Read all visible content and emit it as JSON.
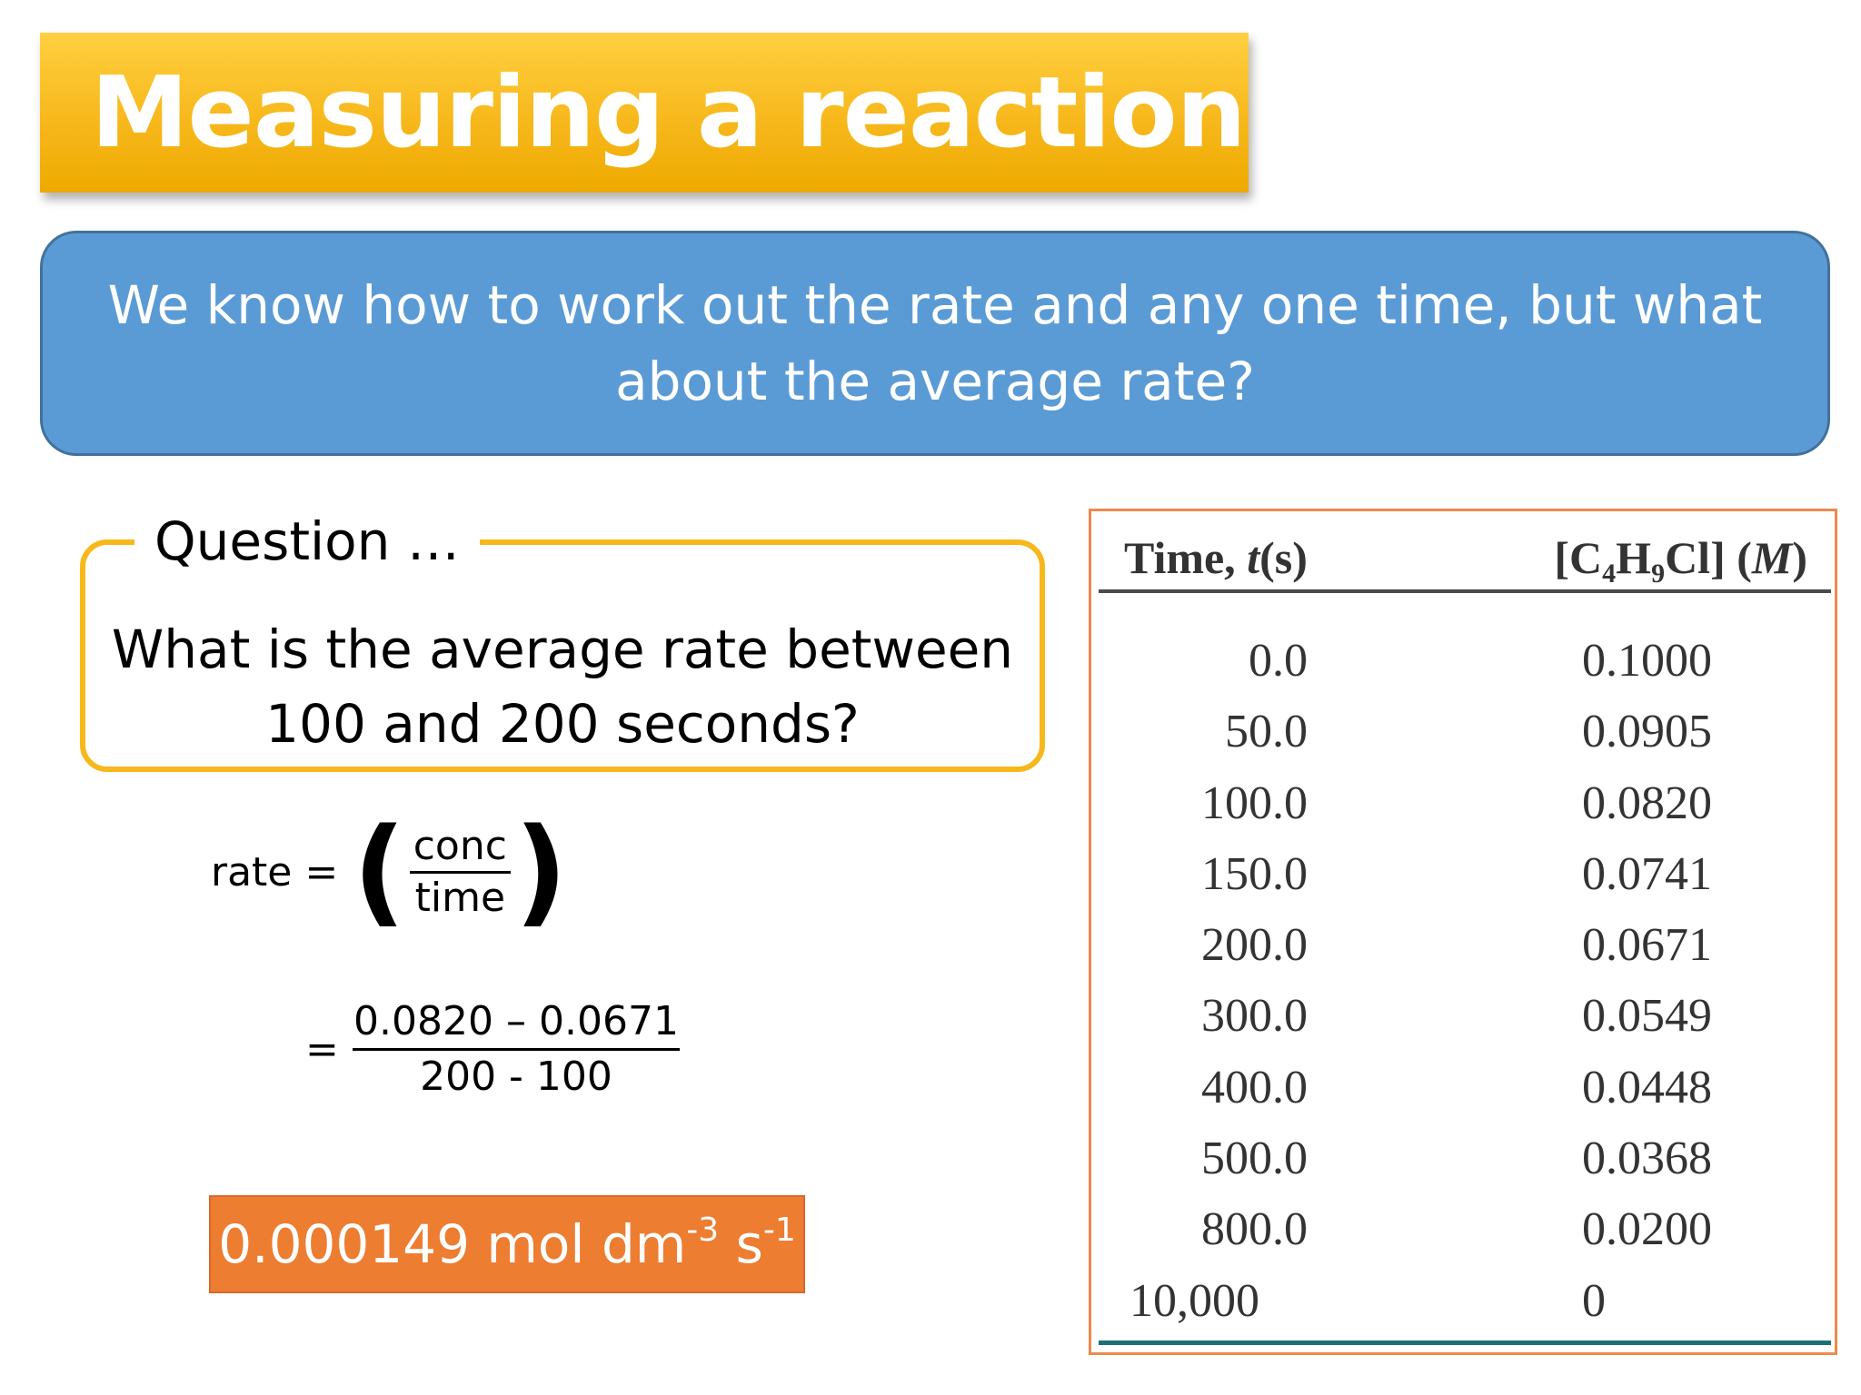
{
  "title": "Measuring a reaction rate",
  "intro": "We know how to work out the rate and any one time, but what about the average rate?",
  "question": {
    "label": "Question …",
    "text": "What is the average rate between 100 and 200 seconds?"
  },
  "formula": {
    "lhs": "rate =",
    "numerator": "conc",
    "denominator": "time",
    "equals": "=",
    "calc_numerator": "0.0820 – 0.0671",
    "calc_denominator": "200 - 100"
  },
  "answer": {
    "value": "0.000149 mol dm",
    "exp1": "-3",
    "unit2": " s",
    "exp2": "-1"
  },
  "table": {
    "header_time_prefix": "Time, ",
    "header_time_var": "t",
    "header_time_unit": "(s)",
    "header_conc_a": "[C",
    "header_conc_sub1": "4",
    "header_conc_b": "H",
    "header_conc_sub2": "9",
    "header_conc_c": "Cl] (",
    "header_conc_unit": "M",
    "header_conc_d": ")",
    "rows": [
      {
        "time": "0.0",
        "conc": "0.1000"
      },
      {
        "time": "50.0",
        "conc": "0.0905"
      },
      {
        "time": "100.0",
        "conc": "0.0820"
      },
      {
        "time": "150.0",
        "conc": "0.0741"
      },
      {
        "time": "200.0",
        "conc": "0.0671"
      },
      {
        "time": "300.0",
        "conc": "0.0549"
      },
      {
        "time": "400.0",
        "conc": "0.0448"
      },
      {
        "time": "500.0",
        "conc": "0.0368"
      },
      {
        "time": "800.0",
        "conc": "0.0200"
      },
      {
        "time": "10,000",
        "conc": "0"
      }
    ]
  }
}
